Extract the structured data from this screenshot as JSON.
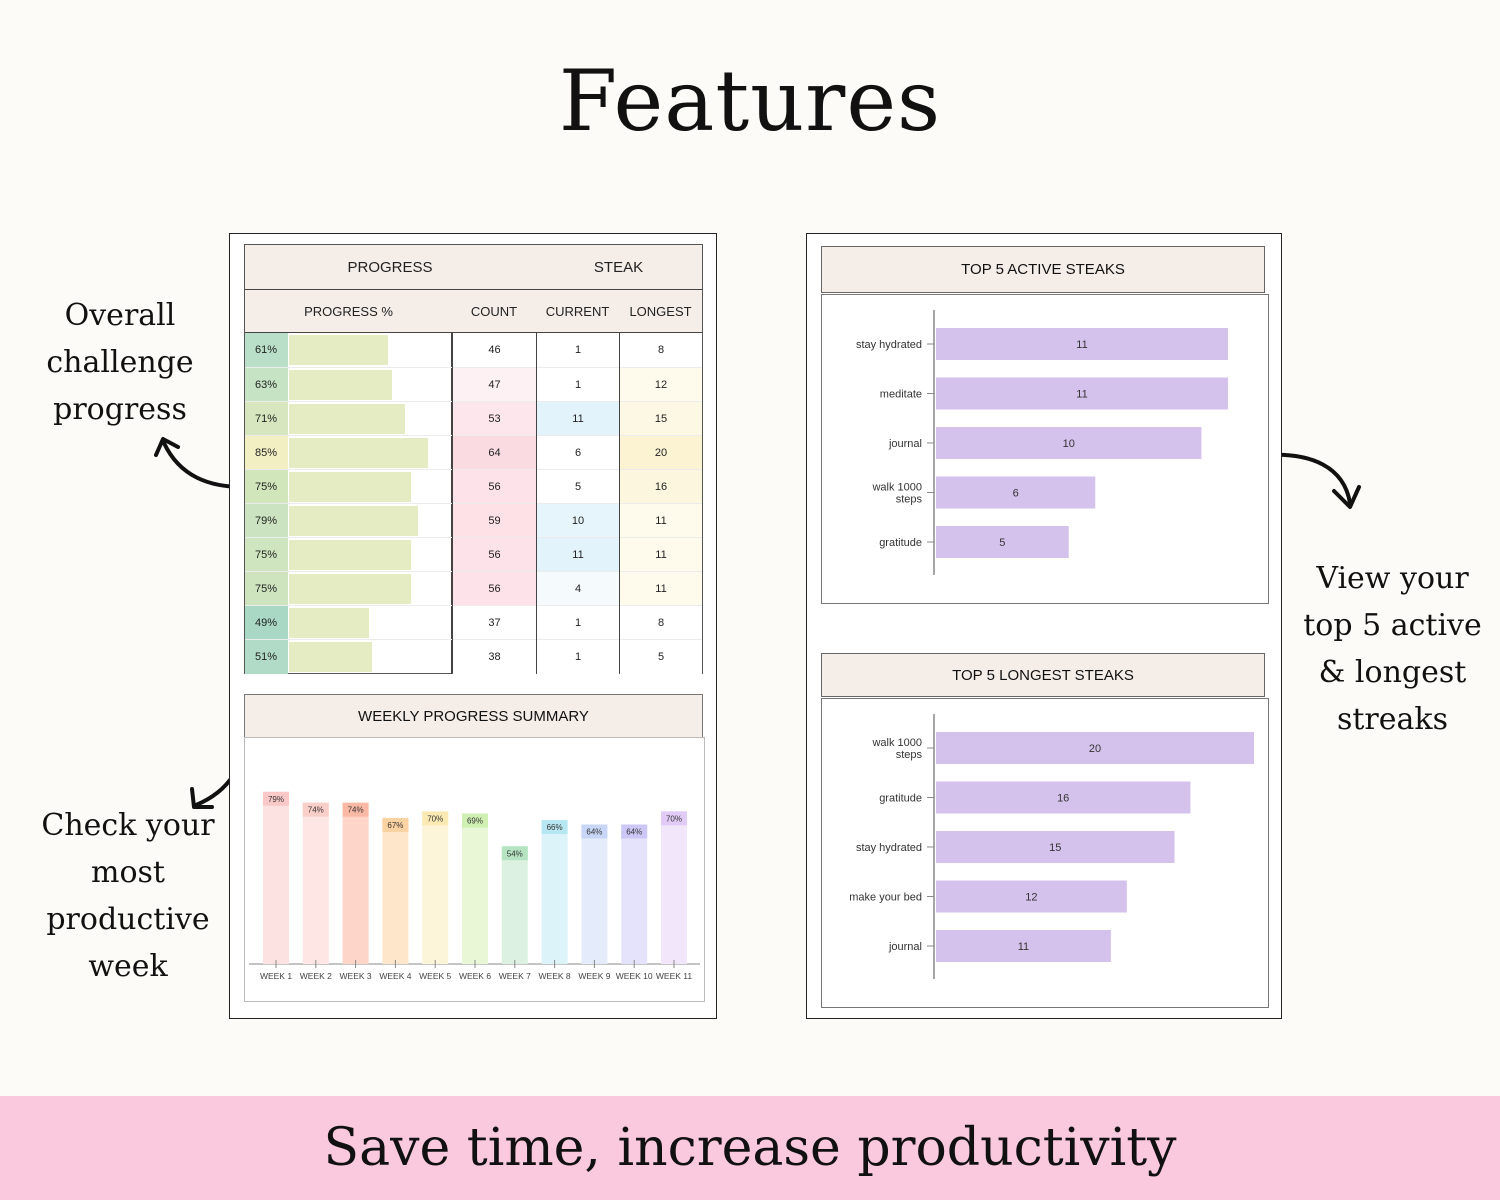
{
  "page": {
    "title": "Features",
    "footer": "Save time, increase productivity",
    "captions": {
      "overall": [
        "Overall",
        "challenge",
        "progress"
      ],
      "weekly": [
        "Check your",
        "most",
        "productive",
        "week"
      ],
      "top5": [
        "View your",
        "top 5 active",
        "& longest",
        "streaks"
      ]
    }
  },
  "progress_table": {
    "headers": {
      "progress": "PROGRESS",
      "streak": "STEAK",
      "progress_pct": "PROGRESS %",
      "count": "COUNT",
      "current": "CURRENT",
      "longest": "LONGEST"
    },
    "rows": [
      {
        "pct": "61%",
        "value": 61,
        "count": "46",
        "current": "1",
        "longest": "8"
      },
      {
        "pct": "63%",
        "value": 63,
        "count": "47",
        "current": "1",
        "longest": "12"
      },
      {
        "pct": "71%",
        "value": 71,
        "count": "53",
        "current": "11",
        "longest": "15"
      },
      {
        "pct": "85%",
        "value": 85,
        "count": "64",
        "current": "6",
        "longest": "20"
      },
      {
        "pct": "75%",
        "value": 75,
        "count": "56",
        "current": "5",
        "longest": "16"
      },
      {
        "pct": "79%",
        "value": 79,
        "count": "59",
        "current": "10",
        "longest": "11"
      },
      {
        "pct": "75%",
        "value": 75,
        "count": "56",
        "current": "11",
        "longest": "11"
      },
      {
        "pct": "75%",
        "value": 75,
        "count": "56",
        "current": "4",
        "longest": "11"
      },
      {
        "pct": "49%",
        "value": 49,
        "count": "37",
        "current": "1",
        "longest": "8"
      },
      {
        "pct": "51%",
        "value": 51,
        "count": "38",
        "current": "1",
        "longest": "5"
      }
    ],
    "pct_colors": [
      "#b9dfc9",
      "#c6e3c4",
      "#d7e6bf",
      "#f2efc3",
      "#d2e6bb",
      "#cbe3c0",
      "#cfe5bf",
      "#cee4bf",
      "#a9d8c4",
      "#b1dbc6"
    ],
    "count_colors": [
      "#ffffff",
      "#fdf1f3",
      "#fde7ec",
      "#fbdbe2",
      "#fde3e9",
      "#fde1e7",
      "#fde3e9",
      "#fde3e9",
      "#ffffff",
      "#ffffff"
    ],
    "current_colors": [
      "#ffffff",
      "#ffffff",
      "#e3f3fb",
      "#ffffff",
      "#ffffff",
      "#e6f4fb",
      "#e3f3fb",
      "#f5fafd",
      "#ffffff",
      "#ffffff"
    ],
    "longest_colors": [
      "#ffffff",
      "#fefbec",
      "#fdf8e3",
      "#fcf3d3",
      "#fdf6de",
      "#fefbec",
      "#fefbec",
      "#fefbec",
      "#ffffff",
      "#ffffff"
    ]
  },
  "weekly_summary": {
    "title": "WEEKLY PROGRESS SUMMARY"
  },
  "top_active": {
    "title": "TOP 5 ACTIVE STEAKS"
  },
  "top_longest": {
    "title": "TOP 5 LONGEST STEAKS"
  },
  "colors": {
    "streak_bar": "#d5c2ec",
    "header_bg": "#f5ede8",
    "footer_bg": "#fbc9de"
  },
  "chart_data": [
    {
      "type": "bar",
      "title": "WEEKLY PROGRESS SUMMARY",
      "categories": [
        "WEEK 1",
        "WEEK 2",
        "WEEK 3",
        "WEEK 4",
        "WEEK 5",
        "WEEK 6",
        "WEEK 7",
        "WEEK 8",
        "WEEK 9",
        "WEEK 10",
        "WEEK 11"
      ],
      "values": [
        79,
        74,
        74,
        67,
        70,
        69,
        54,
        66,
        64,
        64,
        70
      ],
      "data_labels": [
        "79%",
        "74%",
        "74%",
        "67%",
        "70%",
        "69%",
        "54%",
        "66%",
        "64%",
        "64%",
        "70%"
      ],
      "colors": [
        "#fde2e2",
        "#fde6e3",
        "#fdd5c9",
        "#fde6c9",
        "#fdf5d9",
        "#e9f7d6",
        "#dcf1e2",
        "#dcf3f9",
        "#e4ecfb",
        "#e5e3fb",
        "#f2e6fb"
      ],
      "label_colors": [
        "#fbc8c8",
        "#fbcfc9",
        "#fbb9a5",
        "#fbd2a1",
        "#fbeab4",
        "#cff0b2",
        "#b6e4c3",
        "#b7e7f3",
        "#c7d6f7",
        "#cbc7f7",
        "#e2cbf7"
      ],
      "ylim": [
        0,
        100
      ]
    },
    {
      "type": "bar",
      "orientation": "horizontal",
      "title": "TOP 5 ACTIVE STEAKS",
      "categories": [
        "stay hydrated",
        "meditate",
        "journal",
        "walk 1000 steps",
        "gratitude"
      ],
      "category_lines": [
        [
          "stay hydrated"
        ],
        [
          "meditate"
        ],
        [
          "journal"
        ],
        [
          "walk 1000",
          "steps"
        ],
        [
          "gratitude"
        ]
      ],
      "values": [
        11,
        11,
        10,
        6,
        5
      ],
      "xlim": [
        0,
        12
      ]
    },
    {
      "type": "bar",
      "orientation": "horizontal",
      "title": "TOP 5 LONGEST STEAKS",
      "categories": [
        "walk 1000 steps",
        "gratitude",
        "stay hydrated",
        "make your bed",
        "journal"
      ],
      "category_lines": [
        [
          "walk 1000",
          "steps"
        ],
        [
          "gratitude"
        ],
        [
          "stay hydrated"
        ],
        [
          "make your bed"
        ],
        [
          "journal"
        ]
      ],
      "values": [
        20,
        16,
        15,
        12,
        11
      ],
      "xlim": [
        0,
        20
      ]
    }
  ]
}
